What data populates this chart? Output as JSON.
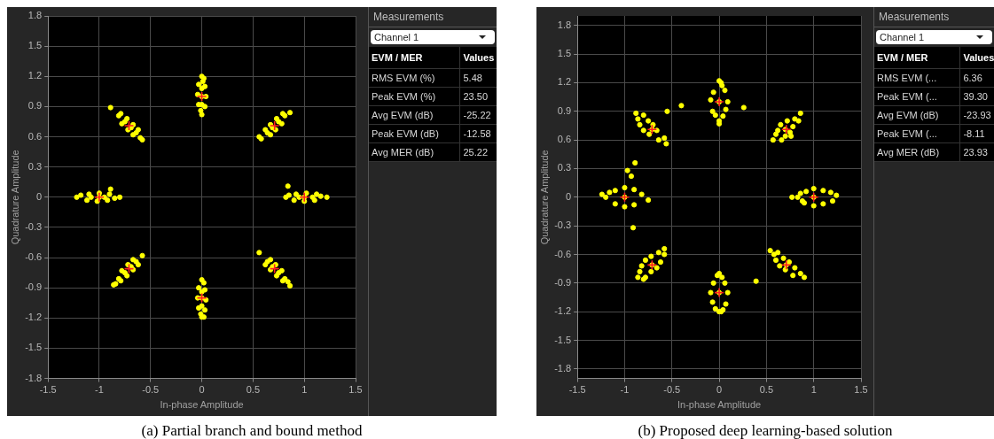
{
  "chart_data": [
    {
      "type": "scatter",
      "title": "(a) Partial branch and bound method",
      "xlabel": "In-phase Amplitude",
      "ylabel": "Quadrature Amplitude",
      "xlim": [
        -1.5,
        1.5
      ],
      "ylim": [
        -1.8,
        1.8
      ],
      "xticks": [
        -1.5,
        -1,
        -0.5,
        0,
        0.5,
        1,
        1.5
      ],
      "yticks": [
        -1.8,
        -1.5,
        -1.2,
        -0.9,
        -0.6,
        -0.3,
        0,
        0.3,
        0.6,
        0.9,
        1.2,
        1.5,
        1.8
      ],
      "grid": true,
      "series": [
        {
          "color": "#ffff00",
          "marker": "circle",
          "x": [
            0,
            0.02,
            -0.03,
            0.03,
            -0.04,
            0.04,
            -0.03,
            0.03,
            0,
            0,
            0,
            0,
            -0.01,
            0.01,
            0,
            0.02,
            -0.03,
            0.03,
            -0.04,
            0.04,
            -0.03,
            0.03,
            0,
            0,
            0,
            0,
            -0.01,
            0.02,
            0.82,
            0.85,
            0.9,
            0.92,
            1.0,
            1.02,
            1.1,
            1.12,
            1.22,
            1.0,
            1.08,
            0.95,
            1.16,
            0.84,
            -1.22,
            -1.18,
            -1.12,
            -1.1,
            -1.02,
            -1.0,
            -0.92,
            -0.9,
            -0.8,
            -1.0,
            -1.08,
            -0.95,
            -0.85,
            -0.89,
            0.58,
            0.64,
            0.62,
            0.67,
            0.69,
            0.67,
            0.72,
            0.75,
            0.73,
            0.78,
            0.81,
            0.79,
            0.86,
            0.56,
            -0.58,
            -0.64,
            -0.62,
            -0.67,
            -0.69,
            -0.67,
            -0.72,
            -0.75,
            -0.73,
            -0.78,
            -0.81,
            -0.79,
            -0.89,
            -0.6,
            -0.58,
            -0.64,
            -0.62,
            -0.67,
            -0.69,
            -0.67,
            -0.72,
            -0.75,
            -0.73,
            -0.78,
            -0.81,
            -0.79,
            -0.86,
            -0.84,
            0.56,
            0.64,
            0.62,
            0.67,
            0.69,
            0.67,
            0.72,
            0.75,
            0.73,
            0.78,
            0.81,
            0.79,
            0.86,
            0.84
          ],
          "values": [
            1.2,
            1.18,
            1.12,
            1.1,
            1.02,
            1.0,
            0.92,
            0.9,
            0.82,
            1.0,
            1.08,
            0.92,
            0.86,
            1.15,
            -0.82,
            -0.85,
            -0.9,
            -0.92,
            -1.0,
            -1.02,
            -1.1,
            -1.12,
            -1.19,
            -1.0,
            -1.08,
            -0.94,
            -1.16,
            -1.19,
            0,
            0.02,
            -0.03,
            0.03,
            -0.04,
            0.04,
            -0.03,
            0.03,
            0,
            0,
            0,
            0,
            0.01,
            0.11,
            0,
            0.02,
            -0.03,
            0.03,
            -0.04,
            0.04,
            -0.03,
            0.03,
            0,
            0,
            0,
            0,
            -0.01,
            0.08,
            0.58,
            0.64,
            0.67,
            0.62,
            0.69,
            0.72,
            0.67,
            0.75,
            0.78,
            0.73,
            0.81,
            0.83,
            0.84,
            0.6,
            0.57,
            0.64,
            0.67,
            0.62,
            0.69,
            0.72,
            0.67,
            0.75,
            0.78,
            0.73,
            0.81,
            0.83,
            0.89,
            0.59,
            -0.58,
            -0.64,
            -0.67,
            -0.62,
            -0.69,
            -0.72,
            -0.67,
            -0.75,
            -0.78,
            -0.73,
            -0.81,
            -0.83,
            -0.87,
            -0.86,
            -0.55,
            -0.64,
            -0.67,
            -0.62,
            -0.69,
            -0.72,
            -0.67,
            -0.75,
            -0.78,
            -0.73,
            -0.81,
            -0.83,
            -0.88,
            -0.84
          ]
        },
        {
          "color": "#ff2020",
          "marker": "cross",
          "x": [
            0,
            0.71,
            1,
            0.71,
            0,
            -0.71,
            -1,
            -0.71
          ],
          "values": [
            1,
            0.71,
            0,
            -0.71,
            -1,
            -0.71,
            0,
            0.71
          ]
        }
      ],
      "annotations": [
        "Measurements",
        "Channel 1",
        "EVM / MER",
        "Values",
        "RMS EVM (%)",
        "5.48",
        "Peak EVM (%)",
        "23.50",
        "Avg EVM (dB)",
        "-25.22",
        "Peak EVM (dB)",
        "-12.58",
        "Avg MER (dB)",
        "25.22"
      ]
    },
    {
      "type": "scatter",
      "title": "(b) Proposed deep learning-based solution",
      "xlabel": "In-phase Amplitude",
      "ylabel": "Quadrature Amplitude",
      "xlim": [
        -1.5,
        1.5
      ],
      "ylim": [
        -1.9,
        1.9
      ],
      "xticks": [
        -1.5,
        -1,
        -0.5,
        0,
        0.5,
        1,
        1.5
      ],
      "yticks": [
        -1.8,
        -1.5,
        -1.2,
        -0.9,
        -0.6,
        -0.3,
        0,
        0.3,
        0.6,
        0.9,
        1.2,
        1.5,
        1.8
      ],
      "grid": true,
      "series": [
        {
          "color": "#ffff00",
          "marker": "circle",
          "x": [
            0,
            0.03,
            -0.06,
            0.06,
            -0.09,
            0.09,
            -0.07,
            0.07,
            0,
            0,
            0,
            -0.04,
            0.04,
            0.02,
            -0.4,
            0.26,
            0,
            0.03,
            -0.06,
            0.06,
            -0.09,
            0.09,
            -0.07,
            0.07,
            0,
            0,
            -0.04,
            0.04,
            -0.02,
            0.02,
            0.83,
            0.86,
            0.9,
            0.92,
            1.0,
            1.0,
            1.1,
            1.1,
            1.24,
            1.0,
            0.77,
            1.2,
            1.18,
            0.88,
            -1.2,
            -1.16,
            -1.1,
            -1.1,
            -1.0,
            -1.0,
            -0.9,
            -0.9,
            -0.82,
            -1.0,
            -1.24,
            -0.97,
            -0.93,
            -0.89,
            -0.91,
            -0.75,
            0.57,
            0.6,
            0.66,
            0.62,
            0.7,
            0.65,
            0.75,
            0.72,
            0.78,
            0.8,
            0.84,
            0.86,
            0.7,
            0.76,
            -0.88,
            -0.86,
            -0.8,
            -0.84,
            -0.75,
            -0.8,
            -0.7,
            -0.74,
            -0.66,
            -0.64,
            -0.58,
            -0.56,
            -0.71,
            -0.55,
            -0.86,
            -0.84,
            -0.78,
            -0.82,
            -0.72,
            -0.78,
            -0.66,
            -0.72,
            -0.62,
            -0.64,
            -0.58,
            -0.58,
            -0.71,
            -0.8,
            0.54,
            0.58,
            0.62,
            0.6,
            0.68,
            0.64,
            0.74,
            0.7,
            0.8,
            0.78,
            0.86,
            0.9,
            0.71,
            0.39
          ],
          "values": [
            1.22,
            1.17,
            1.1,
            1.12,
            1.02,
            1.0,
            0.9,
            0.92,
            0.8,
            1.0,
            0.77,
            0.86,
            0.85,
            1.2,
            0.96,
            0.94,
            -0.8,
            -0.84,
            -0.9,
            -0.9,
            -1.0,
            -1.0,
            -1.1,
            -1.12,
            -1.2,
            -1.0,
            -1.17,
            -1.18,
            -0.82,
            -1.2,
            0,
            0.04,
            -0.06,
            0.06,
            -0.09,
            0.09,
            -0.07,
            0.07,
            0.02,
            0,
            0,
            -0.04,
            0.05,
            -0.04,
            0,
            0.05,
            -0.07,
            0.07,
            -0.1,
            0.1,
            -0.08,
            0.08,
            0.03,
            0,
            0.03,
            0.28,
            0.22,
            0.36,
            -0.32,
            -0.03,
            0.6,
            0.66,
            0.6,
            0.7,
            0.64,
            0.76,
            0.68,
            0.8,
            0.74,
            0.82,
            0.8,
            0.88,
            0.71,
            0.64,
            0.88,
            0.82,
            0.86,
            0.76,
            0.8,
            0.7,
            0.76,
            0.66,
            0.7,
            0.6,
            0.62,
            0.56,
            0.71,
            0.9,
            -0.84,
            -0.78,
            -0.84,
            -0.72,
            -0.78,
            -0.66,
            -0.74,
            -0.62,
            -0.68,
            -0.58,
            -0.6,
            -0.54,
            -0.71,
            -0.86,
            -0.56,
            -0.6,
            -0.58,
            -0.66,
            -0.64,
            -0.72,
            -0.68,
            -0.76,
            -0.74,
            -0.82,
            -0.8,
            -0.84,
            -0.71,
            -0.88
          ]
        },
        {
          "color": "#ff2020",
          "marker": "cross",
          "x": [
            0,
            0.71,
            1,
            0.71,
            0,
            -0.71,
            -1,
            -0.71
          ],
          "values": [
            1,
            0.71,
            0,
            -0.71,
            -1,
            -0.71,
            0,
            0.71
          ]
        }
      ],
      "annotations": [
        "Measurements",
        "Channel 1",
        "EVM / MER",
        "Values",
        "RMS EVM (...",
        "6.36",
        "Peak EVM (...",
        "39.30",
        "Avg EVM (dB)",
        "-23.93",
        "Peak EVM (...",
        "-8.11",
        "Avg MER (dB)",
        "23.93"
      ]
    }
  ]
}
